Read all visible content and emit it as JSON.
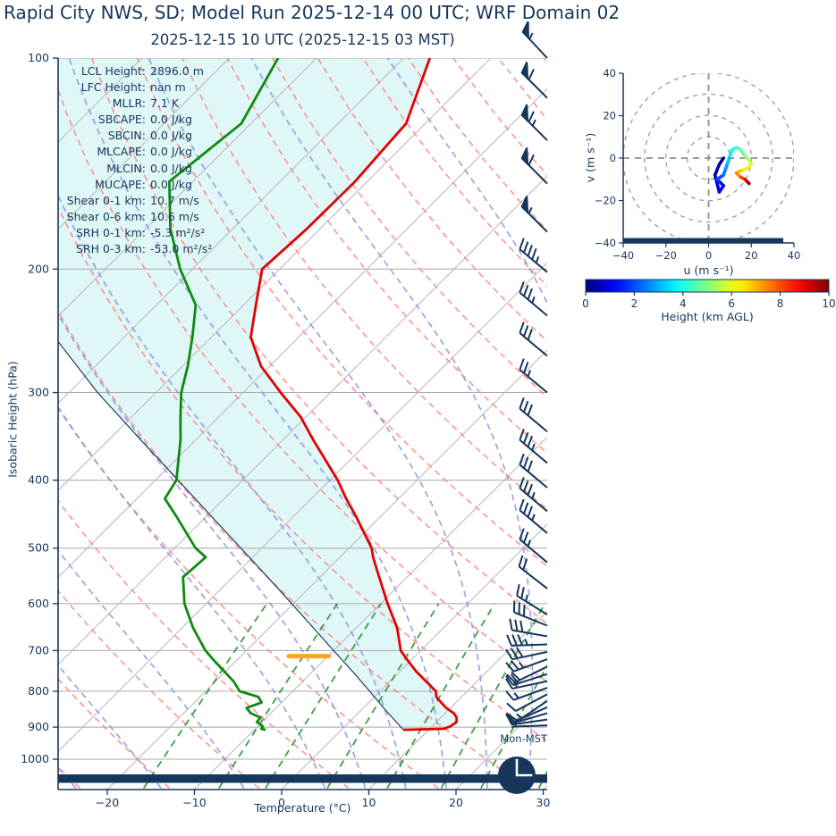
{
  "title": "Rapid City NWS, SD; Model Run 2025-12-14 00 UTC; WRF Domain 02",
  "subtitle": "2025-12-15 10 UTC  (2025-12-15 03 MST)",
  "skewt": {
    "ylabel": "Isobaric Height (hPa)",
    "xlabel": "Temperature (°C)",
    "surface_time_label": "Mon-MST",
    "pressure_ticks": [
      100,
      200,
      300,
      400,
      500,
      600,
      700,
      800,
      900,
      1000
    ],
    "temperature_ticks": [
      -20,
      -10,
      0,
      10,
      20,
      30
    ],
    "stats": [
      {
        "label": "LCL Height:",
        "value": "2896.0 m"
      },
      {
        "label": "LFC Height:",
        "value": "nan m"
      },
      {
        "label": "MLLR:",
        "value": "7.1 K"
      },
      {
        "label": "SBCAPE:",
        "value": "0.0 J/kg"
      },
      {
        "label": "SBCIN:",
        "value": "0.0 J/kg"
      },
      {
        "label": "MLCAPE:",
        "value": "0.0 J/kg"
      },
      {
        "label": "MLCIN:",
        "value": "0.0 J/kg"
      },
      {
        "label": "MUCAPE:",
        "value": "0.0 J/kg"
      },
      {
        "label": "Shear 0-1 km:",
        "value": "10.7 m/s"
      },
      {
        "label": "Shear 0-6 km:",
        "value": "10.6 m/s"
      },
      {
        "label": "SRH 0-1 km:",
        "value": "-5.3 m²/s²"
      },
      {
        "label": "SRH 0-3 km:",
        "value": "-53.0 m²/s²"
      }
    ]
  },
  "hodograph": {
    "xlabel": "u (m s⁻¹)",
    "ylabel": "v (m s⁻¹)",
    "ticks": [
      -40,
      -20,
      0,
      20,
      40
    ],
    "ring_radii": [
      10,
      20,
      30,
      40
    ]
  },
  "colorbar": {
    "label": "Height (km AGL)",
    "ticks": [
      0,
      2,
      4,
      6,
      8,
      10
    ],
    "colormap": "jet"
  },
  "colors": {
    "navy": "#16365c",
    "temperature_line": "#e60000",
    "dewpoint_line": "#0f8a0f",
    "parcel_line": "#1a3a5c",
    "shade_fill": "#e0f7f7",
    "dry_adiabat": "#ff8080",
    "moist_adiabat": "#8a93e6",
    "mixing_ratio": "#1e8f1e",
    "isotherm": "#b8b8b8",
    "pressure_line": "#a8a8a8",
    "lcl_marker": "#ffa620",
    "hodo_grid": "#a0a0a0"
  },
  "chart_data": {
    "type": "skewt-log-p sounding with hodograph",
    "skew_deg": 45,
    "pressure_range_hPa": [
      100,
      1100
    ],
    "temp_axis_range_C": [
      -25.6,
      30.5
    ],
    "sounding": {
      "pressure_hPa": [
        100,
        124,
        150,
        175,
        200,
        225,
        250,
        275,
        300,
        325,
        350,
        400,
        425,
        450,
        500,
        515,
        550,
        600,
        650,
        700,
        725,
        750,
        775,
        800,
        815,
        830,
        845,
        860,
        872,
        885,
        898,
        905,
        908
      ],
      "temperature_C": [
        -67,
        -62.2,
        -61.4,
        -61.5,
        -62,
        -58.6,
        -55.5,
        -51,
        -45.7,
        -40.6,
        -36.6,
        -29.1,
        -26,
        -22.9,
        -17.4,
        -16.2,
        -13.2,
        -9.2,
        -5.3,
        -2.3,
        -0.2,
        1.9,
        4.2,
        6.4,
        7.1,
        8.3,
        9.5,
        11,
        11.8,
        12.3,
        12.1,
        11.6,
        7.1
      ],
      "dewpoint_C": [
        -84.4,
        -81.1,
        -82.7,
        -77.2,
        -71.4,
        -65.5,
        -62.2,
        -59.4,
        -57.1,
        -54.4,
        -51.8,
        -47.6,
        -46.8,
        -43.5,
        -37.6,
        -35.4,
        -35.7,
        -32.5,
        -28.7,
        -24.7,
        -22.4,
        -20.1,
        -17.9,
        -16.1,
        -13.3,
        -12.3,
        -13.4,
        -12.3,
        -10.7,
        -10.6,
        -9.4,
        -9.3,
        -8.7
      ]
    },
    "parcel_profile": {
      "pressure_hPa": [
        908,
        850,
        800,
        750,
        700,
        650,
        600,
        550,
        500,
        450,
        400,
        350,
        300,
        250,
        225,
        200
      ],
      "temperature_C": [
        7.1,
        2.7,
        -1.2,
        -5.4,
        -10,
        -14.9,
        -20.2,
        -26,
        -32.4,
        -39.5,
        -47.4,
        -56.4,
        -66.7,
        -78,
        -83.5,
        -89
      ]
    },
    "lcl_marker": {
      "pressure_hPa": 713,
      "temperature_C": -12.2,
      "half_width_C": 2.3
    },
    "dry_adiabats_theta_C": [
      -30,
      -20,
      -10,
      0,
      10,
      20,
      30,
      40,
      50,
      60,
      70,
      80,
      90,
      100,
      110,
      120,
      130,
      140,
      150,
      160
    ],
    "moist_adiabats_T1000_C": [
      -40,
      -30,
      -20,
      -10,
      0,
      5,
      10,
      15,
      20,
      25,
      30,
      35
    ],
    "mixing_ratio_lines_gkg": [
      1,
      2,
      3,
      5,
      8,
      12,
      16,
      24
    ],
    "mixing_ratio_top_hPa": 600,
    "wind_barbs": [
      [
        100,
        1,
        0,
        1,
        133
      ],
      [
        114,
        1,
        1,
        0,
        135
      ],
      [
        131,
        1,
        1,
        1,
        135
      ],
      [
        151,
        1,
        1,
        0,
        135
      ],
      [
        177,
        1,
        0,
        1,
        135
      ],
      [
        202,
        0,
        4,
        1,
        140
      ],
      [
        233,
        0,
        3,
        1,
        140
      ],
      [
        266,
        0,
        3,
        0,
        140
      ],
      [
        300,
        0,
        2,
        1,
        140
      ],
      [
        341,
        0,
        3,
        0,
        140
      ],
      [
        378,
        0,
        3,
        1,
        140
      ],
      [
        410,
        0,
        3,
        0,
        140
      ],
      [
        443,
        0,
        3,
        1,
        140
      ],
      [
        476,
        0,
        3,
        1,
        140
      ],
      [
        524,
        0,
        2,
        1,
        140
      ],
      [
        571,
        0,
        2,
        0,
        142
      ],
      [
        622,
        0,
        2,
        1,
        148
      ],
      [
        645,
        0,
        3,
        0,
        158
      ],
      [
        668,
        0,
        3,
        0,
        170
      ],
      [
        686,
        0,
        3,
        1,
        182
      ],
      [
        703,
        0,
        3,
        0,
        192
      ],
      [
        720,
        0,
        2,
        1,
        200
      ],
      [
        738,
        0,
        2,
        0,
        206
      ],
      [
        756,
        0,
        2,
        0,
        198
      ],
      [
        774,
        0,
        1,
        1,
        192
      ],
      [
        791,
        0,
        1,
        1,
        200
      ],
      [
        808,
        0,
        1,
        0,
        208
      ],
      [
        826,
        0,
        1,
        1,
        214
      ],
      [
        843,
        0,
        1,
        0,
        204
      ],
      [
        860,
        0,
        1,
        0,
        196
      ],
      [
        878,
        0,
        1,
        0,
        188
      ],
      [
        895,
        0,
        0,
        1,
        182
      ]
    ],
    "barb_legend": "columns: pressure_hPa, pennants, full_barbs, half_barbs, staff_angle_deg",
    "hodograph_trace_h_u_v": [
      [
        0,
        7,
        0
      ],
      [
        0.2,
        5,
        -3
      ],
      [
        0.45,
        3,
        -8
      ],
      [
        0.7,
        4,
        -12
      ],
      [
        1,
        5,
        -16
      ],
      [
        1.25,
        7,
        -13
      ],
      [
        1.5,
        5,
        -11
      ],
      [
        1.8,
        4,
        -10
      ],
      [
        2.2,
        7,
        -8
      ],
      [
        2.6,
        8,
        -5
      ],
      [
        3,
        9,
        -2
      ],
      [
        3.4,
        10,
        1
      ],
      [
        3.8,
        11,
        4
      ],
      [
        4.2,
        13,
        5
      ],
      [
        4.6,
        15,
        4
      ],
      [
        5,
        17,
        1
      ],
      [
        5.4,
        19,
        -1
      ],
      [
        5.8,
        20,
        -3
      ],
      [
        6.2,
        18,
        -5
      ],
      [
        6.6,
        15,
        -6
      ],
      [
        7.1,
        13,
        -7
      ],
      [
        7.7,
        15,
        -9
      ],
      [
        8.4,
        17,
        -10
      ],
      [
        9.2,
        18,
        -11
      ],
      [
        10,
        19,
        -12
      ]
    ],
    "hodograph_ground_bar_u": [
      -40,
      35
    ],
    "colorbar_range_km": [
      0,
      10
    ]
  }
}
